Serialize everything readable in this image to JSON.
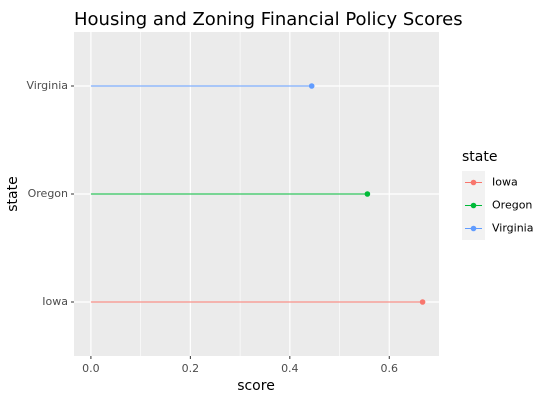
{
  "chart_data": {
    "type": "lollipop",
    "title": "Housing and Zoning Financial Policy Scores",
    "xlabel": "score",
    "ylabel": "state",
    "xlim": [
      -0.034,
      0.7
    ],
    "xticks": [
      0.0,
      0.2,
      0.4,
      0.6
    ],
    "xtick_labels": [
      "0.0",
      "0.2",
      "0.4",
      "0.6"
    ],
    "categories": [
      "Iowa",
      "Oregon",
      "Virginia"
    ],
    "series": [
      {
        "name": "Iowa",
        "value": 0.667,
        "color": "#F8766D"
      },
      {
        "name": "Oregon",
        "value": 0.556,
        "color": "#00BA38"
      },
      {
        "name": "Virginia",
        "value": 0.444,
        "color": "#619CFF"
      }
    ],
    "legend": {
      "title": "state",
      "position": "right",
      "entries": [
        "Iowa",
        "Oregon",
        "Virginia"
      ]
    },
    "grid": true,
    "panel_background": "#EBEBEB"
  }
}
